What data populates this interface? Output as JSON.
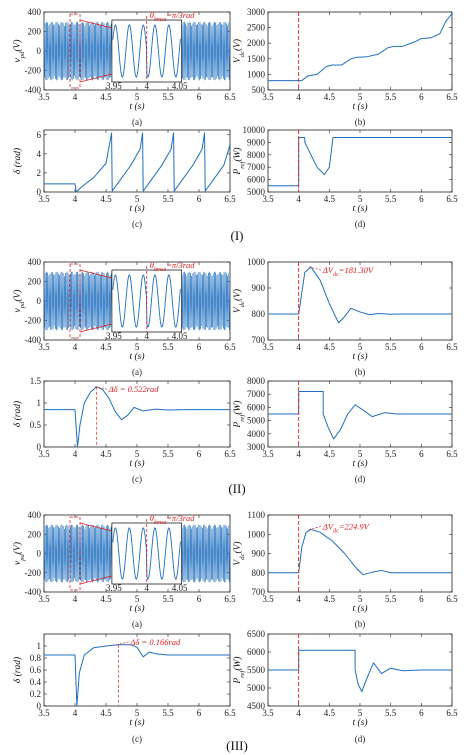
{
  "colors": {
    "line": "#1f6fbf",
    "marker": "#e02020",
    "axis": "#222222",
    "grid": "#e6e6e6"
  },
  "groups": [
    {
      "label": "(I)",
      "inset_annotation": "θ_{bmse}=π/3rad"
    },
    {
      "label": "(II)",
      "inset_annotation": "θ_{bmse}=π/3rad"
    },
    {
      "label": "(III)",
      "inset_annotation": "θ_{bmse}=π/3rad"
    }
  ],
  "chart_data": [
    {
      "group": "(I)",
      "panel": "(a)",
      "type": "line",
      "signal": "sine_dense",
      "xlabel": "t (s)",
      "ylabel": "v_{pd}(V)",
      "xlim": [
        3.5,
        6.5
      ],
      "ylim": [
        -400,
        400
      ],
      "xticks": [
        "3.5",
        "4",
        "4.5",
        "5",
        "5.5",
        "6",
        "6.5"
      ],
      "yticks": [
        "400",
        "200",
        "0",
        "-200",
        "-400"
      ],
      "amplitude": 300,
      "event_time": 4.0,
      "inset": {
        "xlim": [
          3.95,
          4.05
        ],
        "xticks": [
          "3.95",
          "4",
          "4.05"
        ],
        "phase_jump": "π/3"
      }
    },
    {
      "group": "(I)",
      "panel": "(b)",
      "type": "line",
      "xlabel": "t (s)",
      "ylabel": "V_{dc}(V)",
      "xlim": [
        3.5,
        6.5
      ],
      "ylim": [
        500,
        3000
      ],
      "xticks": [
        "3.5",
        "4",
        "4.5",
        "5",
        "5.5",
        "6",
        "6.5"
      ],
      "yticks": [
        "3000",
        "2500",
        "2000",
        "1500",
        "1000",
        "500"
      ],
      "x": [
        3.5,
        4.0,
        4.05,
        4.15,
        4.3,
        4.45,
        4.55,
        4.7,
        4.85,
        4.95,
        5.1,
        5.3,
        5.45,
        5.55,
        5.7,
        5.9,
        6.0,
        6.15,
        6.3,
        6.4,
        6.5
      ],
      "y": [
        800,
        800,
        800,
        950,
        1000,
        1250,
        1300,
        1300,
        1500,
        1550,
        1560,
        1650,
        1850,
        1900,
        1900,
        2050,
        2150,
        2170,
        2300,
        2700,
        2950
      ],
      "event_time": 4.0
    },
    {
      "group": "(I)",
      "panel": "(c)",
      "type": "line",
      "xlabel": "t (s)",
      "ylabel": "δ (rad)",
      "xlim": [
        3.5,
        6.5
      ],
      "ylim": [
        0,
        6.5
      ],
      "xticks": [
        "3.5",
        "4",
        "4.5",
        "5",
        "5.5",
        "6",
        "6.5"
      ],
      "yticks": [
        "6",
        "4",
        "2",
        "0"
      ],
      "x": [
        3.5,
        4.0,
        4.02,
        4.1,
        4.3,
        4.5,
        4.59,
        4.6,
        4.7,
        4.9,
        5.05,
        5.09,
        5.1,
        5.2,
        5.4,
        5.55,
        5.59,
        5.6,
        5.7,
        5.9,
        6.05,
        6.09,
        6.1,
        6.2,
        6.4,
        6.48,
        6.5
      ],
      "y": [
        0.85,
        0.85,
        0.0,
        0.5,
        1.5,
        3.0,
        6.2,
        0.1,
        1.0,
        2.8,
        4.5,
        6.2,
        0.1,
        1.0,
        2.8,
        4.5,
        6.2,
        0.1,
        1.0,
        2.8,
        4.5,
        6.2,
        0.1,
        1.0,
        2.8,
        4.5,
        5.0
      ],
      "event_time": 4.0
    },
    {
      "group": "(I)",
      "panel": "(d)",
      "type": "line",
      "xlabel": "t (s)",
      "ylabel": "P_{ref}(W)",
      "xlim": [
        3.5,
        6.5
      ],
      "ylim": [
        5000,
        10000
      ],
      "xticks": [
        "3.5",
        "4",
        "4.5",
        "5",
        "5.5",
        "6",
        "6.5"
      ],
      "yticks": [
        "10000",
        "9000",
        "8000",
        "7000",
        "6000",
        "5000"
      ],
      "x": [
        3.5,
        4.0,
        4.0,
        4.1,
        4.1,
        4.2,
        4.3,
        4.42,
        4.5,
        4.55,
        4.56,
        6.5
      ],
      "y": [
        5500,
        5500,
        9400,
        9400,
        9000,
        8000,
        7000,
        6400,
        7000,
        9000,
        9400,
        9400
      ],
      "event_time": 4.0
    },
    {
      "group": "(II)",
      "panel": "(a)",
      "type": "line",
      "signal": "sine_dense",
      "xlabel": "t (s)",
      "ylabel": "v_{pd}(V)",
      "xlim": [
        3.5,
        6.5
      ],
      "ylim": [
        -400,
        400
      ],
      "xticks": [
        "3.5",
        "4",
        "4.5",
        "5",
        "5.5",
        "6",
        "6.5"
      ],
      "yticks": [
        "400",
        "200",
        "0",
        "-200",
        "-400"
      ],
      "amplitude": 300,
      "event_time": 4.0,
      "inset": {
        "xlim": [
          3.95,
          4.05
        ],
        "xticks": [
          "3.95",
          "4",
          "4.05"
        ],
        "phase_jump": "π/3"
      }
    },
    {
      "group": "(II)",
      "panel": "(b)",
      "type": "line",
      "xlabel": "t (s)",
      "ylabel": "V_{dc}(V)",
      "xlim": [
        3.5,
        6.5
      ],
      "ylim": [
        700,
        1000
      ],
      "xticks": [
        "3.5",
        "4",
        "4.5",
        "5",
        "5.5",
        "6",
        "6.5"
      ],
      "yticks": [
        "1000",
        "900",
        "800",
        "700"
      ],
      "x": [
        3.5,
        4.0,
        4.05,
        4.1,
        4.2,
        4.35,
        4.5,
        4.65,
        4.75,
        4.85,
        5.0,
        5.15,
        5.3,
        5.5,
        5.7,
        6.0,
        6.5
      ],
      "y": [
        800,
        800,
        880,
        960,
        981,
        930,
        840,
        766,
        790,
        822,
        808,
        797,
        802,
        799,
        800,
        800,
        800
      ],
      "event_time": 4.0,
      "annotation": "ΔV_{dc}=181.30V"
    },
    {
      "group": "(II)",
      "panel": "(c)",
      "type": "line",
      "xlabel": "t (s)",
      "ylabel": "δ (rad)",
      "xlim": [
        3.5,
        6.5
      ],
      "ylim": [
        0,
        1.5
      ],
      "xticks": [
        "3.5",
        "4",
        "4.5",
        "5",
        "5.5",
        "6",
        "6.5"
      ],
      "yticks": [
        "1.5",
        "1",
        "0.5",
        "0"
      ],
      "x": [
        3.5,
        4.0,
        4.04,
        4.08,
        4.15,
        4.25,
        4.35,
        4.45,
        4.55,
        4.65,
        4.75,
        4.85,
        4.95,
        5.1,
        5.3,
        5.5,
        5.8,
        6.5
      ],
      "y": [
        0.85,
        0.85,
        0.0,
        0.5,
        1.0,
        1.25,
        1.37,
        1.3,
        1.1,
        0.8,
        0.62,
        0.72,
        0.9,
        0.82,
        0.86,
        0.84,
        0.85,
        0.85
      ],
      "event_time": 4.0,
      "annotation": "Δδ = 0.522rad"
    },
    {
      "group": "(II)",
      "panel": "(d)",
      "type": "line",
      "xlabel": "t (s)",
      "ylabel": "P_{ref}(W)",
      "xlim": [
        3.5,
        6.5
      ],
      "ylim": [
        3000,
        8000
      ],
      "xticks": [
        "3.5",
        "4",
        "4.5",
        "5",
        "5.5",
        "6",
        "6.5"
      ],
      "yticks": [
        "8000",
        "7000",
        "6000",
        "5000",
        "4000",
        "3000"
      ],
      "x": [
        3.5,
        4.0,
        4.0,
        4.4,
        4.4,
        4.48,
        4.57,
        4.68,
        4.8,
        4.92,
        5.05,
        5.2,
        5.4,
        5.6,
        6.0,
        6.5
      ],
      "y": [
        5500,
        5500,
        7200,
        7200,
        5500,
        4500,
        3600,
        4300,
        5500,
        6200,
        5800,
        5300,
        5600,
        5500,
        5500,
        5500
      ],
      "event_time": 4.0
    },
    {
      "group": "(III)",
      "panel": "(a)",
      "type": "line",
      "signal": "sine_dense",
      "xlabel": "t (s)",
      "ylabel": "v_{pd}(V)",
      "xlim": [
        3.5,
        6.5
      ],
      "ylim": [
        -400,
        400
      ],
      "xticks": [
        "3.5",
        "4",
        "4.5",
        "5",
        "5.5",
        "6",
        "6.5"
      ],
      "yticks": [
        "400",
        "200",
        "0",
        "-200",
        "-400"
      ],
      "amplitude": 300,
      "event_time": 4.0,
      "inset": {
        "xlim": [
          3.95,
          4.05
        ],
        "xticks": [
          "3.95",
          "4",
          "4.05"
        ],
        "phase_jump": "π/3"
      }
    },
    {
      "group": "(III)",
      "panel": "(b)",
      "type": "line",
      "xlabel": "t (s)",
      "ylabel": "V_{dc}(V)",
      "xlim": [
        3.5,
        6.5
      ],
      "ylim": [
        700,
        1100
      ],
      "xticks": [
        "3.5",
        "4",
        "4.5",
        "5",
        "5.5",
        "6",
        "6.5"
      ],
      "yticks": [
        "1100",
        "1000",
        "900",
        "800",
        "700"
      ],
      "x": [
        3.5,
        4.0,
        4.05,
        4.12,
        4.2,
        4.35,
        4.55,
        4.75,
        4.95,
        5.05,
        5.2,
        5.35,
        5.5,
        5.7,
        6.0,
        6.5
      ],
      "y": [
        800,
        800,
        930,
        1010,
        1025,
        1010,
        965,
        900,
        820,
        790,
        803,
        812,
        800,
        800,
        800,
        800
      ],
      "event_time": 4.0,
      "annotation": "ΔV_{dc}=224.9V"
    },
    {
      "group": "(III)",
      "panel": "(c)",
      "type": "line",
      "xlabel": "t (s)",
      "ylabel": "δ (rad)",
      "xlim": [
        3.5,
        6.5
      ],
      "ylim": [
        0,
        1.2
      ],
      "xticks": [
        "3.5",
        "4",
        "4.5",
        "5",
        "5.5",
        "6",
        "6.5"
      ],
      "yticks": [
        "1",
        "0.8",
        "0.6",
        "0.4",
        "0.2",
        "0"
      ],
      "x": [
        3.5,
        4.0,
        4.03,
        4.07,
        4.15,
        4.3,
        4.5,
        4.7,
        4.9,
        5.0,
        5.1,
        5.2,
        5.3,
        5.5,
        5.8,
        6.5
      ],
      "y": [
        0.85,
        0.85,
        0.0,
        0.55,
        0.85,
        0.97,
        1.0,
        1.02,
        1.02,
        0.98,
        0.82,
        0.9,
        0.87,
        0.85,
        0.85,
        0.85
      ],
      "event_time": 4.0,
      "annotation": "Δδ = 0.166rad"
    },
    {
      "group": "(III)",
      "panel": "(d)",
      "type": "line",
      "xlabel": "t (s)",
      "ylabel": "P_{ref}(W)",
      "xlim": [
        3.5,
        6.5
      ],
      "ylim": [
        4500,
        6500
      ],
      "xticks": [
        "3.5",
        "4",
        "4.5",
        "5",
        "5.5",
        "6",
        "6.5"
      ],
      "yticks": [
        "6500",
        "6000",
        "5500",
        "5000",
        "4500"
      ],
      "x": [
        3.5,
        4.0,
        4.0,
        4.92,
        4.92,
        4.97,
        5.03,
        5.12,
        5.22,
        5.35,
        5.5,
        5.7,
        6.0,
        6.5
      ],
      "y": [
        5500,
        5500,
        6050,
        6050,
        5500,
        5100,
        4900,
        5300,
        5700,
        5400,
        5550,
        5480,
        5500,
        5500
      ],
      "event_time": 4.0
    }
  ]
}
